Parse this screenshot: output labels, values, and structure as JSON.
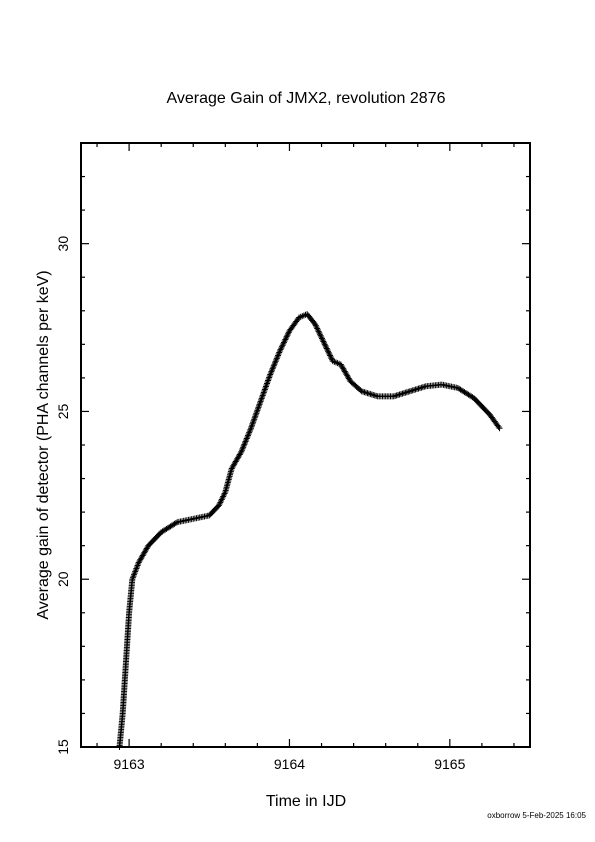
{
  "chart_data": {
    "type": "scatter",
    "title": "Average Gain of JMX2, revolution 2876",
    "xlabel": "Time in IJD",
    "ylabel": "Average gain of detector (PHA channels per keV)",
    "xlim": [
      9162.7,
      9165.5
    ],
    "ylim": [
      15,
      33
    ],
    "xticks": [
      9163,
      9164,
      9165
    ],
    "yticks": [
      15,
      20,
      25,
      30
    ],
    "marker": "plus",
    "grid": false,
    "key_points": [
      {
        "x": 9162.94,
        "y": 15.0
      },
      {
        "x": 9162.96,
        "y": 16.0
      },
      {
        "x": 9162.98,
        "y": 17.5
      },
      {
        "x": 9163.0,
        "y": 19.0
      },
      {
        "x": 9163.02,
        "y": 20.0
      },
      {
        "x": 9163.06,
        "y": 20.5
      },
      {
        "x": 9163.12,
        "y": 21.0
      },
      {
        "x": 9163.2,
        "y": 21.4
      },
      {
        "x": 9163.3,
        "y": 21.7
      },
      {
        "x": 9163.4,
        "y": 21.8
      },
      {
        "x": 9163.5,
        "y": 21.9
      },
      {
        "x": 9163.56,
        "y": 22.2
      },
      {
        "x": 9163.6,
        "y": 22.6
      },
      {
        "x": 9163.64,
        "y": 23.3
      },
      {
        "x": 9163.7,
        "y": 23.8
      },
      {
        "x": 9163.76,
        "y": 24.5
      },
      {
        "x": 9163.82,
        "y": 25.3
      },
      {
        "x": 9163.88,
        "y": 26.1
      },
      {
        "x": 9163.94,
        "y": 26.8
      },
      {
        "x": 9164.0,
        "y": 27.4
      },
      {
        "x": 9164.06,
        "y": 27.8
      },
      {
        "x": 9164.11,
        "y": 27.9
      },
      {
        "x": 9164.16,
        "y": 27.6
      },
      {
        "x": 9164.22,
        "y": 27.0
      },
      {
        "x": 9164.27,
        "y": 26.5
      },
      {
        "x": 9164.32,
        "y": 26.4
      },
      {
        "x": 9164.38,
        "y": 25.9
      },
      {
        "x": 9164.45,
        "y": 25.6
      },
      {
        "x": 9164.55,
        "y": 25.45
      },
      {
        "x": 9164.65,
        "y": 25.45
      },
      {
        "x": 9164.75,
        "y": 25.6
      },
      {
        "x": 9164.85,
        "y": 25.75
      },
      {
        "x": 9164.95,
        "y": 25.8
      },
      {
        "x": 9165.05,
        "y": 25.7
      },
      {
        "x": 9165.15,
        "y": 25.4
      },
      {
        "x": 9165.25,
        "y": 24.9
      },
      {
        "x": 9165.31,
        "y": 24.5
      }
    ]
  },
  "footer": {
    "credit": "oxborrow  5-Feb-2025 16:05"
  }
}
